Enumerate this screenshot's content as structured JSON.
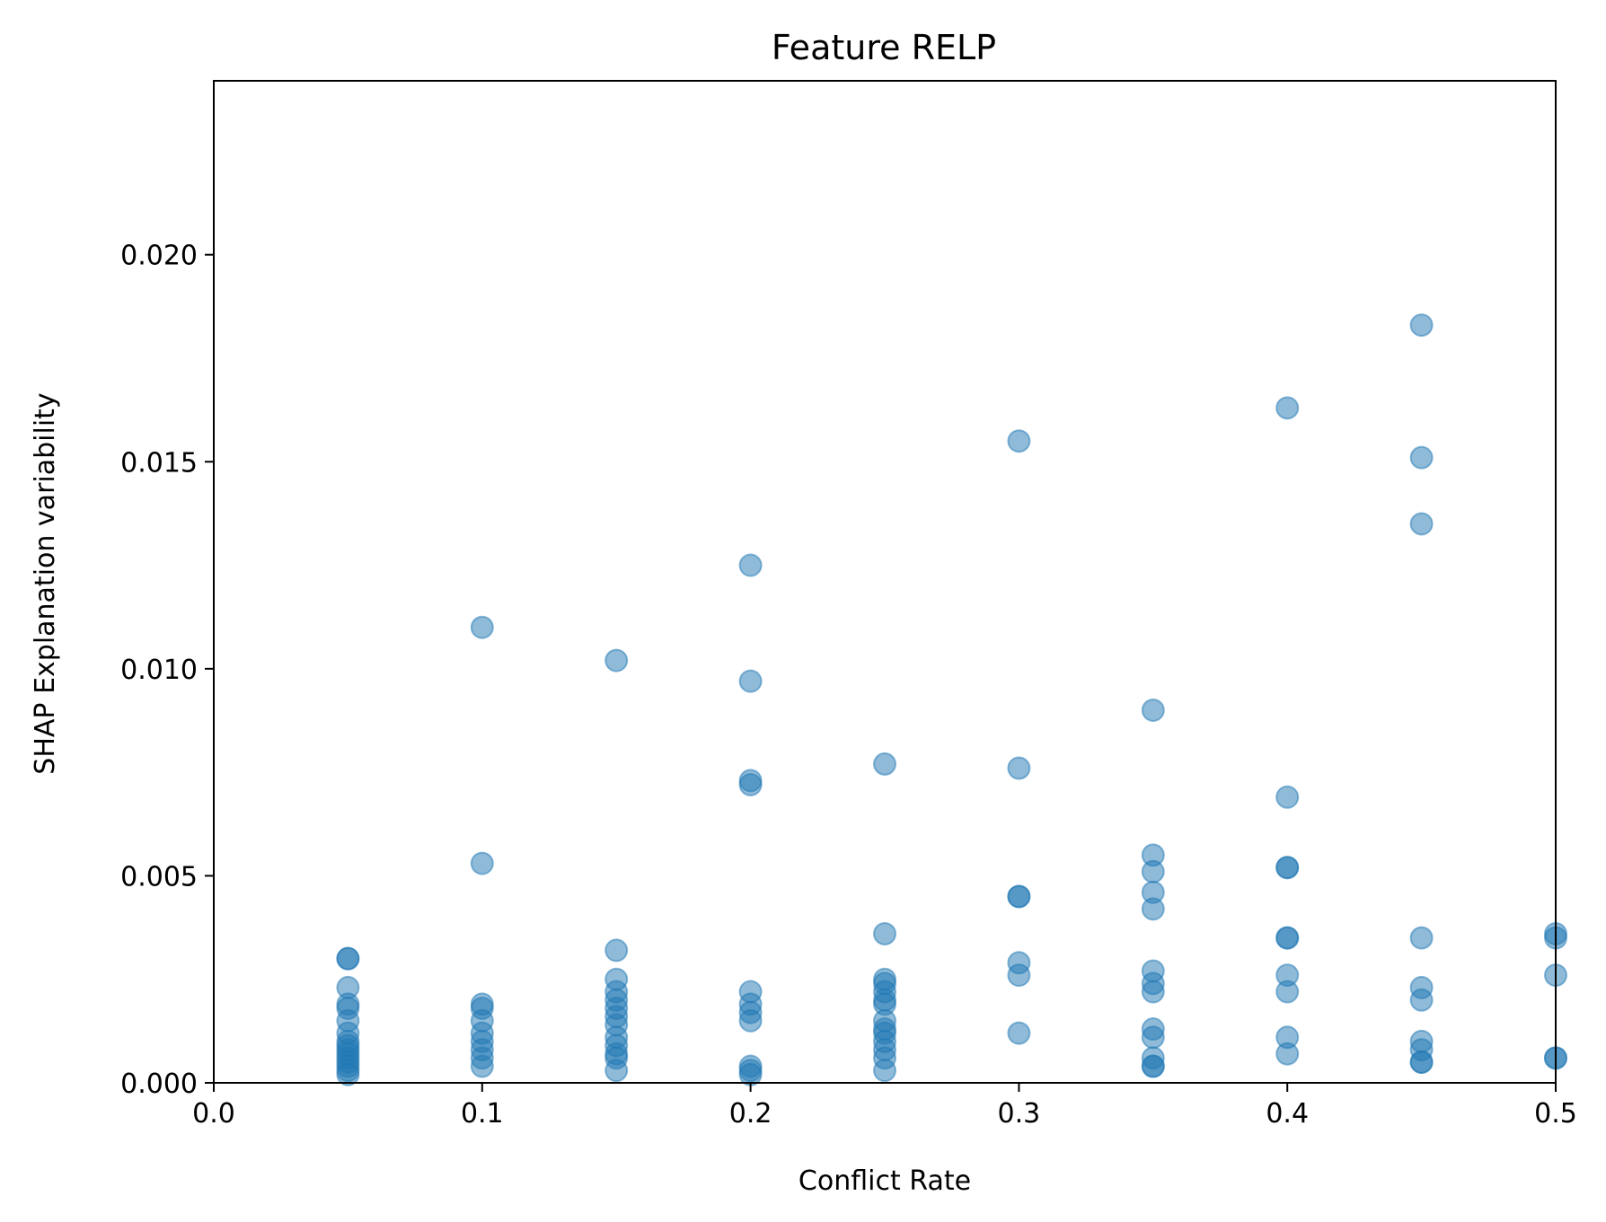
{
  "chart_data": {
    "type": "scatter",
    "title": "Feature RELP",
    "xlabel": "Conflict Rate",
    "ylabel": "SHAP Explanation variability",
    "xlim": [
      0.0,
      0.5
    ],
    "ylim": [
      0.0,
      0.0242
    ],
    "xticks": [
      0.0,
      0.1,
      0.2,
      0.3,
      0.4,
      0.5
    ],
    "xtick_labels": [
      "0.0",
      "0.1",
      "0.2",
      "0.3",
      "0.4",
      "0.5"
    ],
    "yticks": [
      0.0,
      0.005,
      0.01,
      0.015,
      0.02
    ],
    "ytick_labels": [
      "0.000",
      "0.005",
      "0.010",
      "0.015",
      "0.020"
    ],
    "grid": false,
    "legend": "none",
    "color": "#1f77b4",
    "marker_opacity": 0.5,
    "points": [
      [
        0.05,
        0.003
      ],
      [
        0.05,
        0.003
      ],
      [
        0.05,
        0.0023
      ],
      [
        0.05,
        0.0019
      ],
      [
        0.05,
        0.0018
      ],
      [
        0.05,
        0.0015
      ],
      [
        0.05,
        0.0012
      ],
      [
        0.05,
        0.001
      ],
      [
        0.05,
        0.0009
      ],
      [
        0.05,
        0.0008
      ],
      [
        0.05,
        0.0007
      ],
      [
        0.05,
        0.0006
      ],
      [
        0.05,
        0.0005
      ],
      [
        0.05,
        0.0004
      ],
      [
        0.05,
        0.0003
      ],
      [
        0.05,
        0.0002
      ],
      [
        0.1,
        0.011
      ],
      [
        0.1,
        0.0053
      ],
      [
        0.1,
        0.0019
      ],
      [
        0.1,
        0.0018
      ],
      [
        0.1,
        0.0015
      ],
      [
        0.1,
        0.0012
      ],
      [
        0.1,
        0.001
      ],
      [
        0.1,
        0.0008
      ],
      [
        0.1,
        0.0006
      ],
      [
        0.1,
        0.0004
      ],
      [
        0.15,
        0.0102
      ],
      [
        0.15,
        0.0032
      ],
      [
        0.15,
        0.0025
      ],
      [
        0.15,
        0.0022
      ],
      [
        0.15,
        0.002
      ],
      [
        0.15,
        0.0018
      ],
      [
        0.15,
        0.0016
      ],
      [
        0.15,
        0.0014
      ],
      [
        0.15,
        0.0011
      ],
      [
        0.15,
        0.0009
      ],
      [
        0.15,
        0.0007
      ],
      [
        0.15,
        0.0006
      ],
      [
        0.15,
        0.0003
      ],
      [
        0.2,
        0.0125
      ],
      [
        0.2,
        0.0097
      ],
      [
        0.2,
        0.0073
      ],
      [
        0.2,
        0.0072
      ],
      [
        0.2,
        0.0022
      ],
      [
        0.2,
        0.0019
      ],
      [
        0.2,
        0.0017
      ],
      [
        0.2,
        0.0015
      ],
      [
        0.2,
        0.0004
      ],
      [
        0.2,
        0.0003
      ],
      [
        0.2,
        0.0002
      ],
      [
        0.25,
        0.0077
      ],
      [
        0.25,
        0.0036
      ],
      [
        0.25,
        0.0025
      ],
      [
        0.25,
        0.0024
      ],
      [
        0.25,
        0.0022
      ],
      [
        0.25,
        0.002
      ],
      [
        0.25,
        0.0019
      ],
      [
        0.25,
        0.0015
      ],
      [
        0.25,
        0.0013
      ],
      [
        0.25,
        0.0012
      ],
      [
        0.25,
        0.001
      ],
      [
        0.25,
        0.0008
      ],
      [
        0.25,
        0.0006
      ],
      [
        0.25,
        0.0003
      ],
      [
        0.3,
        0.0155
      ],
      [
        0.3,
        0.0076
      ],
      [
        0.3,
        0.0045
      ],
      [
        0.3,
        0.0045
      ],
      [
        0.3,
        0.0029
      ],
      [
        0.3,
        0.0026
      ],
      [
        0.3,
        0.0012
      ],
      [
        0.35,
        0.009
      ],
      [
        0.35,
        0.0055
      ],
      [
        0.35,
        0.0051
      ],
      [
        0.35,
        0.0046
      ],
      [
        0.35,
        0.0042
      ],
      [
        0.35,
        0.0027
      ],
      [
        0.35,
        0.0024
      ],
      [
        0.35,
        0.0022
      ],
      [
        0.35,
        0.0013
      ],
      [
        0.35,
        0.0011
      ],
      [
        0.35,
        0.0006
      ],
      [
        0.35,
        0.0004
      ],
      [
        0.35,
        0.0004
      ],
      [
        0.4,
        0.0163
      ],
      [
        0.4,
        0.0069
      ],
      [
        0.4,
        0.0052
      ],
      [
        0.4,
        0.0052
      ],
      [
        0.4,
        0.0035
      ],
      [
        0.4,
        0.0035
      ],
      [
        0.4,
        0.0026
      ],
      [
        0.4,
        0.0022
      ],
      [
        0.4,
        0.0011
      ],
      [
        0.4,
        0.0007
      ],
      [
        0.45,
        0.0183
      ],
      [
        0.45,
        0.0151
      ],
      [
        0.45,
        0.0135
      ],
      [
        0.45,
        0.0035
      ],
      [
        0.45,
        0.0023
      ],
      [
        0.45,
        0.002
      ],
      [
        0.45,
        0.001
      ],
      [
        0.45,
        0.0008
      ],
      [
        0.45,
        0.0005
      ],
      [
        0.45,
        0.0005
      ],
      [
        0.5,
        0.0036
      ],
      [
        0.5,
        0.0035
      ],
      [
        0.5,
        0.0026
      ],
      [
        0.5,
        0.0006
      ],
      [
        0.5,
        0.0006
      ]
    ]
  }
}
